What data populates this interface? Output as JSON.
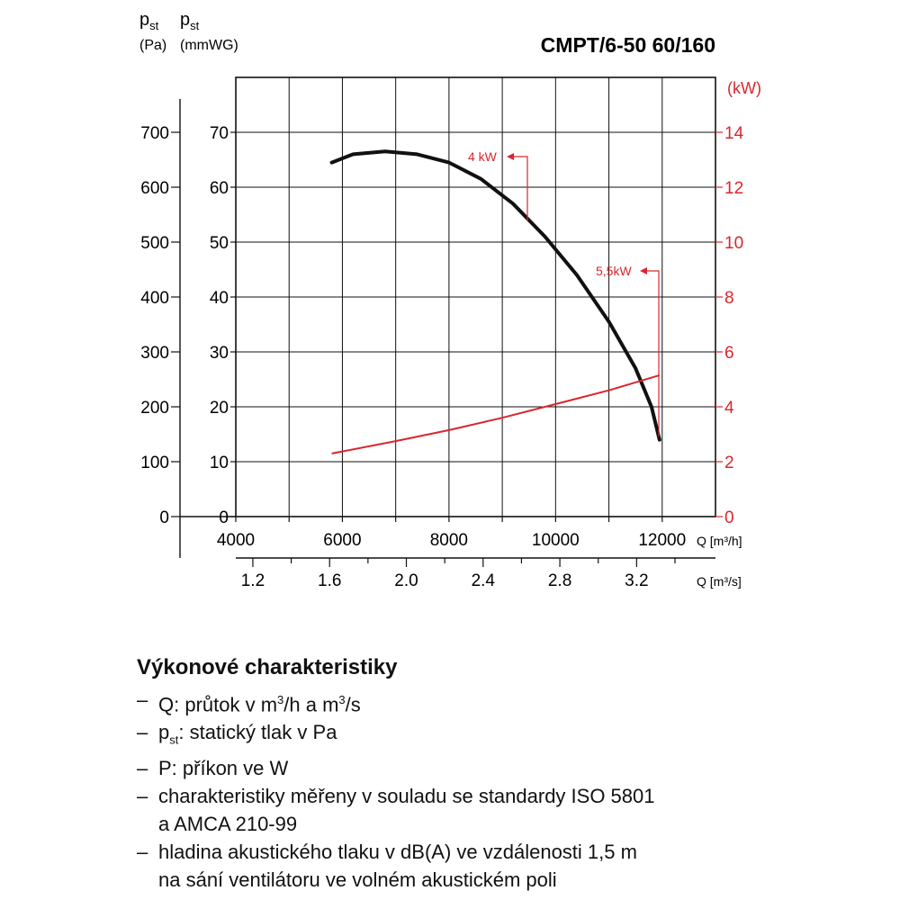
{
  "chart_data": {
    "type": "line",
    "title": "CMPT/6-50 60/160",
    "y_axis_pa": {
      "label_main": "p",
      "label_sub": "st",
      "unit": "(Pa)",
      "ticks": [
        0,
        100,
        200,
        300,
        400,
        500,
        600,
        700
      ]
    },
    "y_axis_mmwg": {
      "label_main": "p",
      "label_sub": "st",
      "unit": "(mmWG)",
      "ticks": [
        0,
        10,
        20,
        30,
        40,
        50,
        60,
        70
      ],
      "ylim": [
        0,
        80
      ]
    },
    "y_axis_kw": {
      "unit": "(kW)",
      "ticks": [
        0,
        2,
        4,
        6,
        8,
        10,
        12,
        14
      ],
      "ylim": [
        0,
        16
      ],
      "color": "#d9262c"
    },
    "x_axis_m3h": {
      "label": "Q [m³/h]",
      "ticks": [
        4000,
        6000,
        8000,
        10000,
        12000
      ],
      "xlim": [
        4000,
        13000
      ]
    },
    "x_axis_m3s": {
      "label": "Q [m³/s]",
      "ticks": [
        "1.2",
        "1.6",
        "2.0",
        "2.4",
        "2.8",
        "3.2"
      ]
    },
    "series": [
      {
        "color": "#111111",
        "x": [
          5800,
          6200,
          6800,
          7400,
          8000,
          8600,
          9200,
          9800,
          10400,
          11000,
          11500,
          11800,
          11950
        ],
        "y": [
          64.5,
          66.0,
          66.5,
          66.0,
          64.5,
          61.5,
          57.0,
          51.0,
          44.0,
          35.5,
          27.0,
          20.0,
          14.0
        ]
      },
      {
        "color": "#d9262c",
        "x": [
          5800,
          7000,
          8000,
          9000,
          10000,
          11000,
          11950
        ],
        "y": [
          2.3,
          2.75,
          3.15,
          3.6,
          4.1,
          4.6,
          5.15
        ]
      }
    ],
    "annotations": [
      {
        "text": "4 kW",
        "color": "#d9262c"
      },
      {
        "text": "5,5kW",
        "color": "#d9262c"
      }
    ]
  },
  "description": {
    "heading": "Výkonové charakteristiky",
    "dash": "–",
    "items": [
      {
        "main": "Q: průtok v m",
        "sup1": "3",
        "mid": "/h a m",
        "sup2": "3",
        "end": "/s"
      },
      {
        "main": "p",
        "sub": "st",
        "end": ": statický tlak v Pa"
      },
      {
        "main": "P: příkon ve W"
      },
      {
        "main": "charakteristiky měřeny v souladu se standardy ISO 5801",
        "cont": "a AMCA 210-99"
      },
      {
        "main": "hladina akustického tlaku v dB(A) ve vzdálenosti 1,5 m",
        "cont": "na sání ventilátoru ve volném akustickém poli"
      }
    ]
  }
}
